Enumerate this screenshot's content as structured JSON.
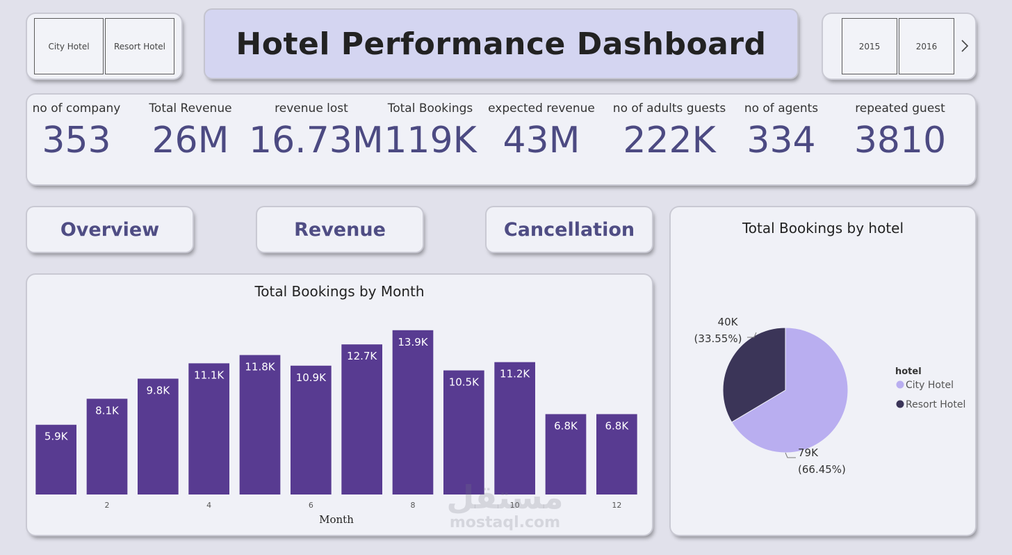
{
  "hotel_slicer": {
    "items": [
      "City Hotel",
      "Resort Hotel"
    ]
  },
  "title": "Hotel Performance Dashboard",
  "year_slicer": {
    "items": [
      "2015",
      "2016"
    ],
    "next_icon": "chevron-right-icon"
  },
  "kpis": [
    {
      "label": "no of company",
      "value": "353"
    },
    {
      "label": "Total Revenue",
      "value": "26M"
    },
    {
      "label": "revenue lost",
      "value": "16.73M"
    },
    {
      "label": "Total Bookings",
      "value": "119K"
    },
    {
      "label": "expected revenue",
      "value": "43M"
    },
    {
      "label": "no of adults guests",
      "value": "222K"
    },
    {
      "label": "no of agents",
      "value": "334"
    },
    {
      "label": "repeated guest",
      "value": "3810"
    }
  ],
  "nav": {
    "overview": "Overview",
    "revenue": "Revenue",
    "cancellation": "Cancellation"
  },
  "colors": {
    "bar": "#583b91",
    "pie_city": "#b9aef0",
    "pie_resort": "#3b3558",
    "kpi_value": "#4c4a82"
  },
  "chart_data": [
    {
      "type": "bar",
      "title": "Total Bookings by Month",
      "xlabel": "Month",
      "ylabel": "",
      "categories": [
        1,
        2,
        3,
        4,
        5,
        6,
        7,
        8,
        9,
        10,
        11,
        12
      ],
      "values": [
        5.9,
        8.1,
        9.8,
        11.1,
        11.8,
        10.9,
        12.7,
        13.9,
        10.5,
        11.2,
        6.8,
        6.8
      ],
      "data_labels": [
        "5.9K",
        "8.1K",
        "9.8K",
        "11.1K",
        "11.8K",
        "10.9K",
        "12.7K",
        "13.9K",
        "10.5K",
        "11.2K",
        "6.8K",
        "6.8K"
      ],
      "x_tick_labels": [
        "2",
        "4",
        "6",
        "8",
        "10",
        "12"
      ],
      "ylim": [
        0,
        14
      ]
    },
    {
      "type": "pie",
      "title": "Total Bookings by hotel",
      "legend_title": "hotel",
      "legend_position": "right",
      "slices": [
        {
          "name": "City Hotel",
          "value": 79,
          "percent": 66.45,
          "label": "79K",
          "pct_label": "(66.45%)"
        },
        {
          "name": "Resort Hotel",
          "value": 40,
          "percent": 33.55,
          "label": "40K",
          "pct_label": "(33.55%)"
        }
      ]
    }
  ],
  "watermark": {
    "arabic": "مستقل",
    "latin": "mostaql.com"
  }
}
